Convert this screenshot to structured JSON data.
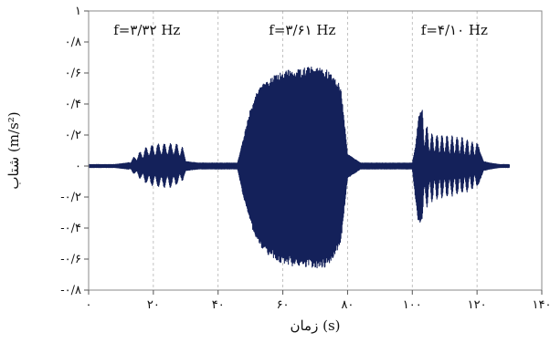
{
  "chart_data": {
    "type": "area",
    "title": "",
    "xlabel": "زمان (s)",
    "ylabel": "شتاب (m/s²)",
    "xlim": [
      0,
      140
    ],
    "ylim": [
      -0.8,
      1.0
    ],
    "x_ticks": [
      0,
      20,
      40,
      60,
      80,
      100,
      120,
      140
    ],
    "x_tick_labels": [
      "۰",
      "۲۰",
      "۴۰",
      "۶۰",
      "۸۰",
      "۱۰۰",
      "۱۲۰",
      "۱۴۰"
    ],
    "y_ticks": [
      1.0,
      0.8,
      0.6,
      0.4,
      0.2,
      0,
      -0.2,
      -0.4,
      -0.6,
      -0.8
    ],
    "y_tick_labels": [
      "۱",
      "۰/۸",
      "۰/۶",
      "۰/۴",
      "۰/۲",
      "۰",
      "-۰/۲",
      "-۰/۴",
      "-۰/۶",
      "-۰/۸"
    ],
    "grid": {
      "x": true,
      "y": false
    },
    "series_color": "#14215a",
    "annotations": [
      {
        "text": "f=۳/۳۲ Hz",
        "x": 18
      },
      {
        "text": "f=۳/۶۱ Hz",
        "x": 66
      },
      {
        "text": "f=۴/۱۰ Hz",
        "x": 113
      }
    ],
    "envelope": {
      "x": [
        0,
        8,
        12,
        14,
        18,
        22,
        26,
        29,
        30,
        34,
        46,
        48,
        50,
        52,
        54,
        56,
        58,
        60,
        64,
        70,
        74,
        76,
        78,
        80,
        84,
        92,
        100,
        101,
        102,
        103,
        105,
        108,
        112,
        116,
        118,
        120,
        121,
        122,
        124,
        127,
        128,
        129,
        130
      ],
      "upper": [
        0.01,
        0.01,
        0.02,
        0.06,
        0.13,
        0.15,
        0.15,
        0.13,
        0.03,
        0.02,
        0.02,
        0.2,
        0.38,
        0.49,
        0.55,
        0.58,
        0.61,
        0.63,
        0.65,
        0.66,
        0.64,
        0.6,
        0.52,
        0.08,
        0.02,
        0.02,
        0.02,
        0.13,
        0.35,
        0.38,
        0.23,
        0.21,
        0.2,
        0.19,
        0.17,
        0.16,
        0.09,
        0.03,
        0.02,
        0.01,
        0.01,
        0.01,
        0.01
      ],
      "lower": [
        -0.01,
        -0.01,
        -0.02,
        -0.05,
        -0.12,
        -0.14,
        -0.14,
        -0.1,
        -0.03,
        -0.02,
        -0.02,
        -0.22,
        -0.38,
        -0.5,
        -0.56,
        -0.6,
        -0.63,
        -0.65,
        -0.67,
        -0.68,
        -0.67,
        -0.6,
        -0.5,
        -0.08,
        -0.02,
        -0.02,
        -0.02,
        -0.22,
        -0.4,
        -0.35,
        -0.25,
        -0.22,
        -0.2,
        -0.18,
        -0.16,
        -0.14,
        -0.09,
        -0.03,
        -0.02,
        -0.01,
        -0.01,
        -0.01,
        -0.01
      ]
    }
  }
}
